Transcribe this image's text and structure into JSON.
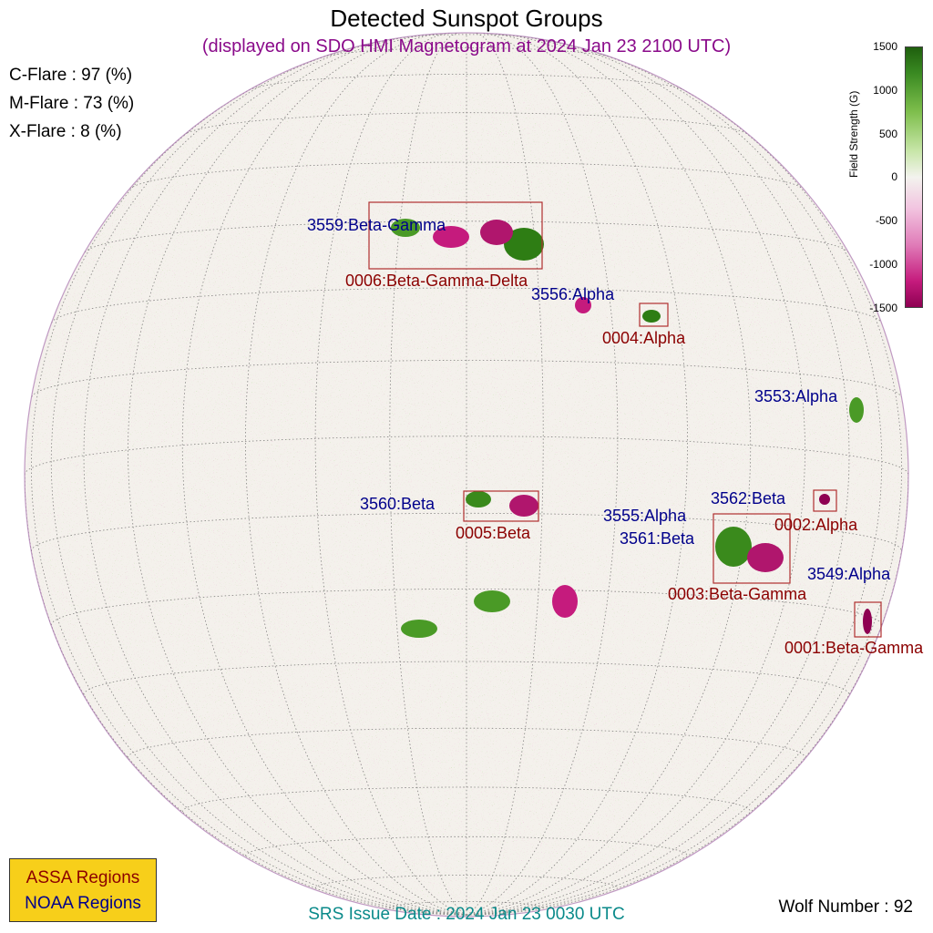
{
  "title": "Detected Sunspot Groups",
  "subtitle": "(displayed on SDO HMI Magnetogram at 2024 Jan 23 2100 UTC)",
  "flares": {
    "c": "C-Flare : 97 (%)",
    "m": "M-Flare : 73 (%)",
    "x": "X-Flare :  8 (%)"
  },
  "colorbar": {
    "label": "Field Strength (G)",
    "ticks": [
      "1500",
      "1000",
      "500",
      "0",
      "-500",
      "-1000",
      "-1500"
    ],
    "colors": {
      "positive": "#2e7d14",
      "negative": "#c51b7d",
      "neutral": "#f3f3ee"
    }
  },
  "regions": {
    "noaa": [
      "3559:Beta-Gamma",
      "3556:Alpha",
      "3553:Alpha",
      "3560:Beta",
      "3562:Beta",
      "3555:Alpha",
      "3561:Beta",
      "3549:Alpha"
    ],
    "assa": [
      "0006:Beta-Gamma-Delta",
      "0004:Alpha",
      "0005:Beta",
      "0002:Alpha",
      "0003:Beta-Gamma",
      "0001:Beta-Gamma"
    ]
  },
  "legend": {
    "assa": "ASSA Regions",
    "noaa": "NOAA Regions",
    "colors": {
      "assa": "#8b0000",
      "noaa": "#00008b",
      "background": "#f7cf1a"
    }
  },
  "srs_issue": "SRS Issue Date : 2024 Jan 23 0030 UTC",
  "wolf_number": "Wolf Number : 92"
}
